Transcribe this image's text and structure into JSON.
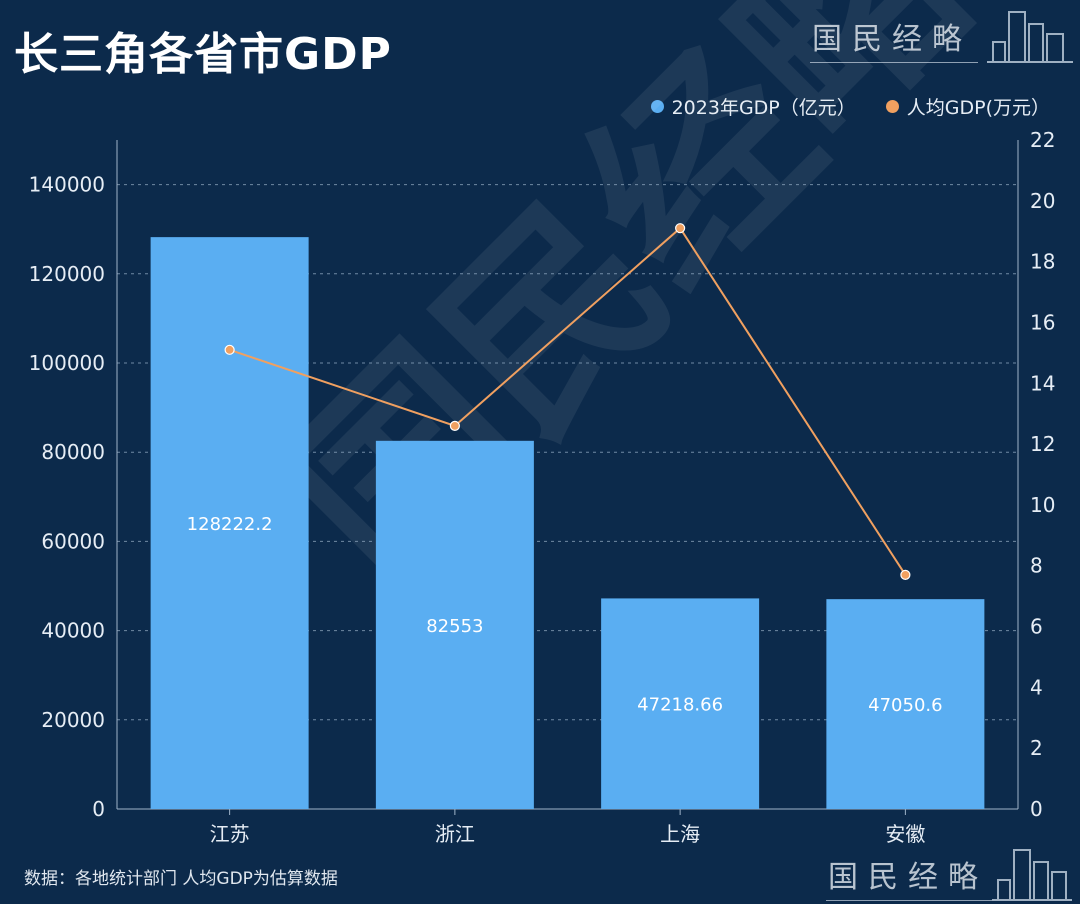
{
  "title": "长三角各省市GDP",
  "brand": "国民经略",
  "source": "数据：各地统计部门 人均GDP为估算数据",
  "legend": {
    "series1": "2023年GDP（亿元）",
    "series2": "人均GDP(万元）"
  },
  "colors": {
    "bar": "#5aaef2",
    "line": "#f0a060",
    "background": "#0c2a4b"
  },
  "chart_data": {
    "type": "bar",
    "categories": [
      "江苏",
      "浙江",
      "上海",
      "安徽"
    ],
    "series": [
      {
        "name": "2023年GDP（亿元）",
        "type": "bar",
        "axis": "left",
        "values": [
          128222.2,
          82553,
          47218.66,
          47050.6
        ],
        "labels": [
          "128222.2",
          "82553",
          "47218.66",
          "47050.6"
        ]
      },
      {
        "name": "人均GDP(万元）",
        "type": "line",
        "axis": "right",
        "values": [
          15.1,
          12.6,
          19.1,
          7.7
        ]
      }
    ],
    "y_left": {
      "min": 0,
      "max": 150000,
      "ticks": [
        0,
        20000,
        40000,
        60000,
        80000,
        100000,
        120000,
        140000
      ]
    },
    "y_right": {
      "min": 0,
      "max": 22,
      "ticks": [
        0,
        2,
        4,
        6,
        8,
        10,
        12,
        14,
        16,
        18,
        20,
        22
      ]
    },
    "grid": true
  }
}
